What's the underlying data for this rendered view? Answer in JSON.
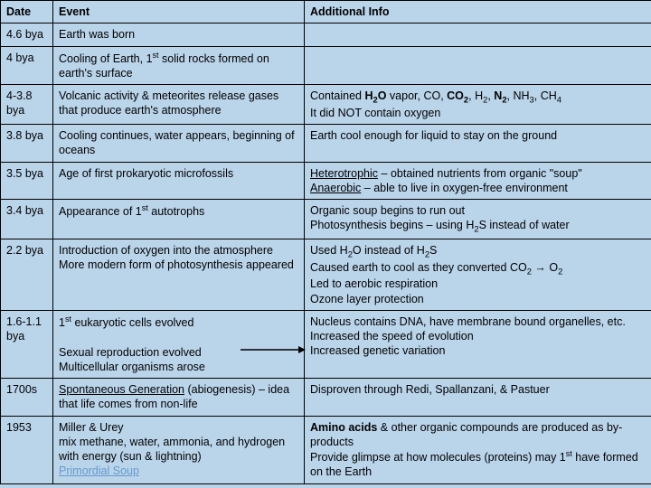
{
  "colors": {
    "background": "#bad4ea",
    "border": "#000000",
    "link": "#6699cc",
    "text": "#000000"
  },
  "headers": {
    "date": "Date",
    "event": "Event",
    "info": "Additional Info"
  },
  "rows": [
    {
      "date": "4.6 bya",
      "event": "Earth was born",
      "info": ""
    },
    {
      "date": "4 bya",
      "event": "Cooling of Earth, 1<sup>st</sup> solid rocks formed on earth's surface",
      "info": ""
    },
    {
      "date": "4-3.8 bya",
      "event": "Volcanic activity & meteorites release gases that produce earth's atmosphere",
      "info": "Contained <span class='b'>H<sub>2</sub>O</span> vapor, CO, <span class='b'>CO<sub>2</sub></span>, H<sub>2</sub>, <span class='b'>N<sub>2</sub></span>, NH<sub>3</sub>, CH<sub>4</sub><br>It did NOT contain oxygen"
    },
    {
      "date": "3.8 bya",
      "event": "Cooling continues, water appears, beginning of oceans",
      "info": "Earth cool enough for liquid to stay on the ground"
    },
    {
      "date": "3.5 bya",
      "event": "Age of first prokaryotic microfossils",
      "info": "<span class='u'>Heterotrophic</span> – obtained nutrients from organic \"soup\"<br><span class='u'>Anaerobic</span> – able to live in oxygen-free environment"
    },
    {
      "date": "3.4 bya",
      "event": "Appearance of 1<sup>st</sup> autotrophs",
      "info": "Organic soup begins to run out<br>Photosynthesis begins – using H<sub>2</sub>S instead of water"
    },
    {
      "date": "2.2 bya",
      "event": "Introduction of oxygen into the atmosphere<br>More modern form of photosynthesis appeared",
      "info": "Used H<sub>2</sub>O instead of H<sub>2</sub>S<br>Caused earth to cool as they converted CO<sub>2</sub> → O<sub>2</sub><br>Led to aerobic respiration<br>Ozone layer protection"
    },
    {
      "date": "1.6-1.1 bya",
      "event": "1<sup>st</sup> eukaryotic cells evolved<br><br>Sexual reproduction evolved<br>Multicellular organisms arose",
      "info": "Nucleus contains DNA, have membrane bound organelles, etc.<br>Increased the speed of evolution<br>Increased genetic variation",
      "arrow": true
    },
    {
      "date": "1700s",
      "event": "<span class='u'>Spontaneous Generation</span> (abiogenesis) – idea that life comes from non-life",
      "info": "Disproven through Redi, Spallanzani, & Pastuer"
    },
    {
      "date": "1953",
      "event": "Miller & Urey<br>mix methane, water, ammonia, and hydrogen with energy (sun & lightning)<br><span class='link'>Primordial Soup</span>",
      "info": "<span class='b'>Amino acids</span> & other organic compounds are produced as by-products<br>Provide glimpse at how molecules (proteins) may 1<sup>st</sup> have formed on the Earth"
    }
  ]
}
